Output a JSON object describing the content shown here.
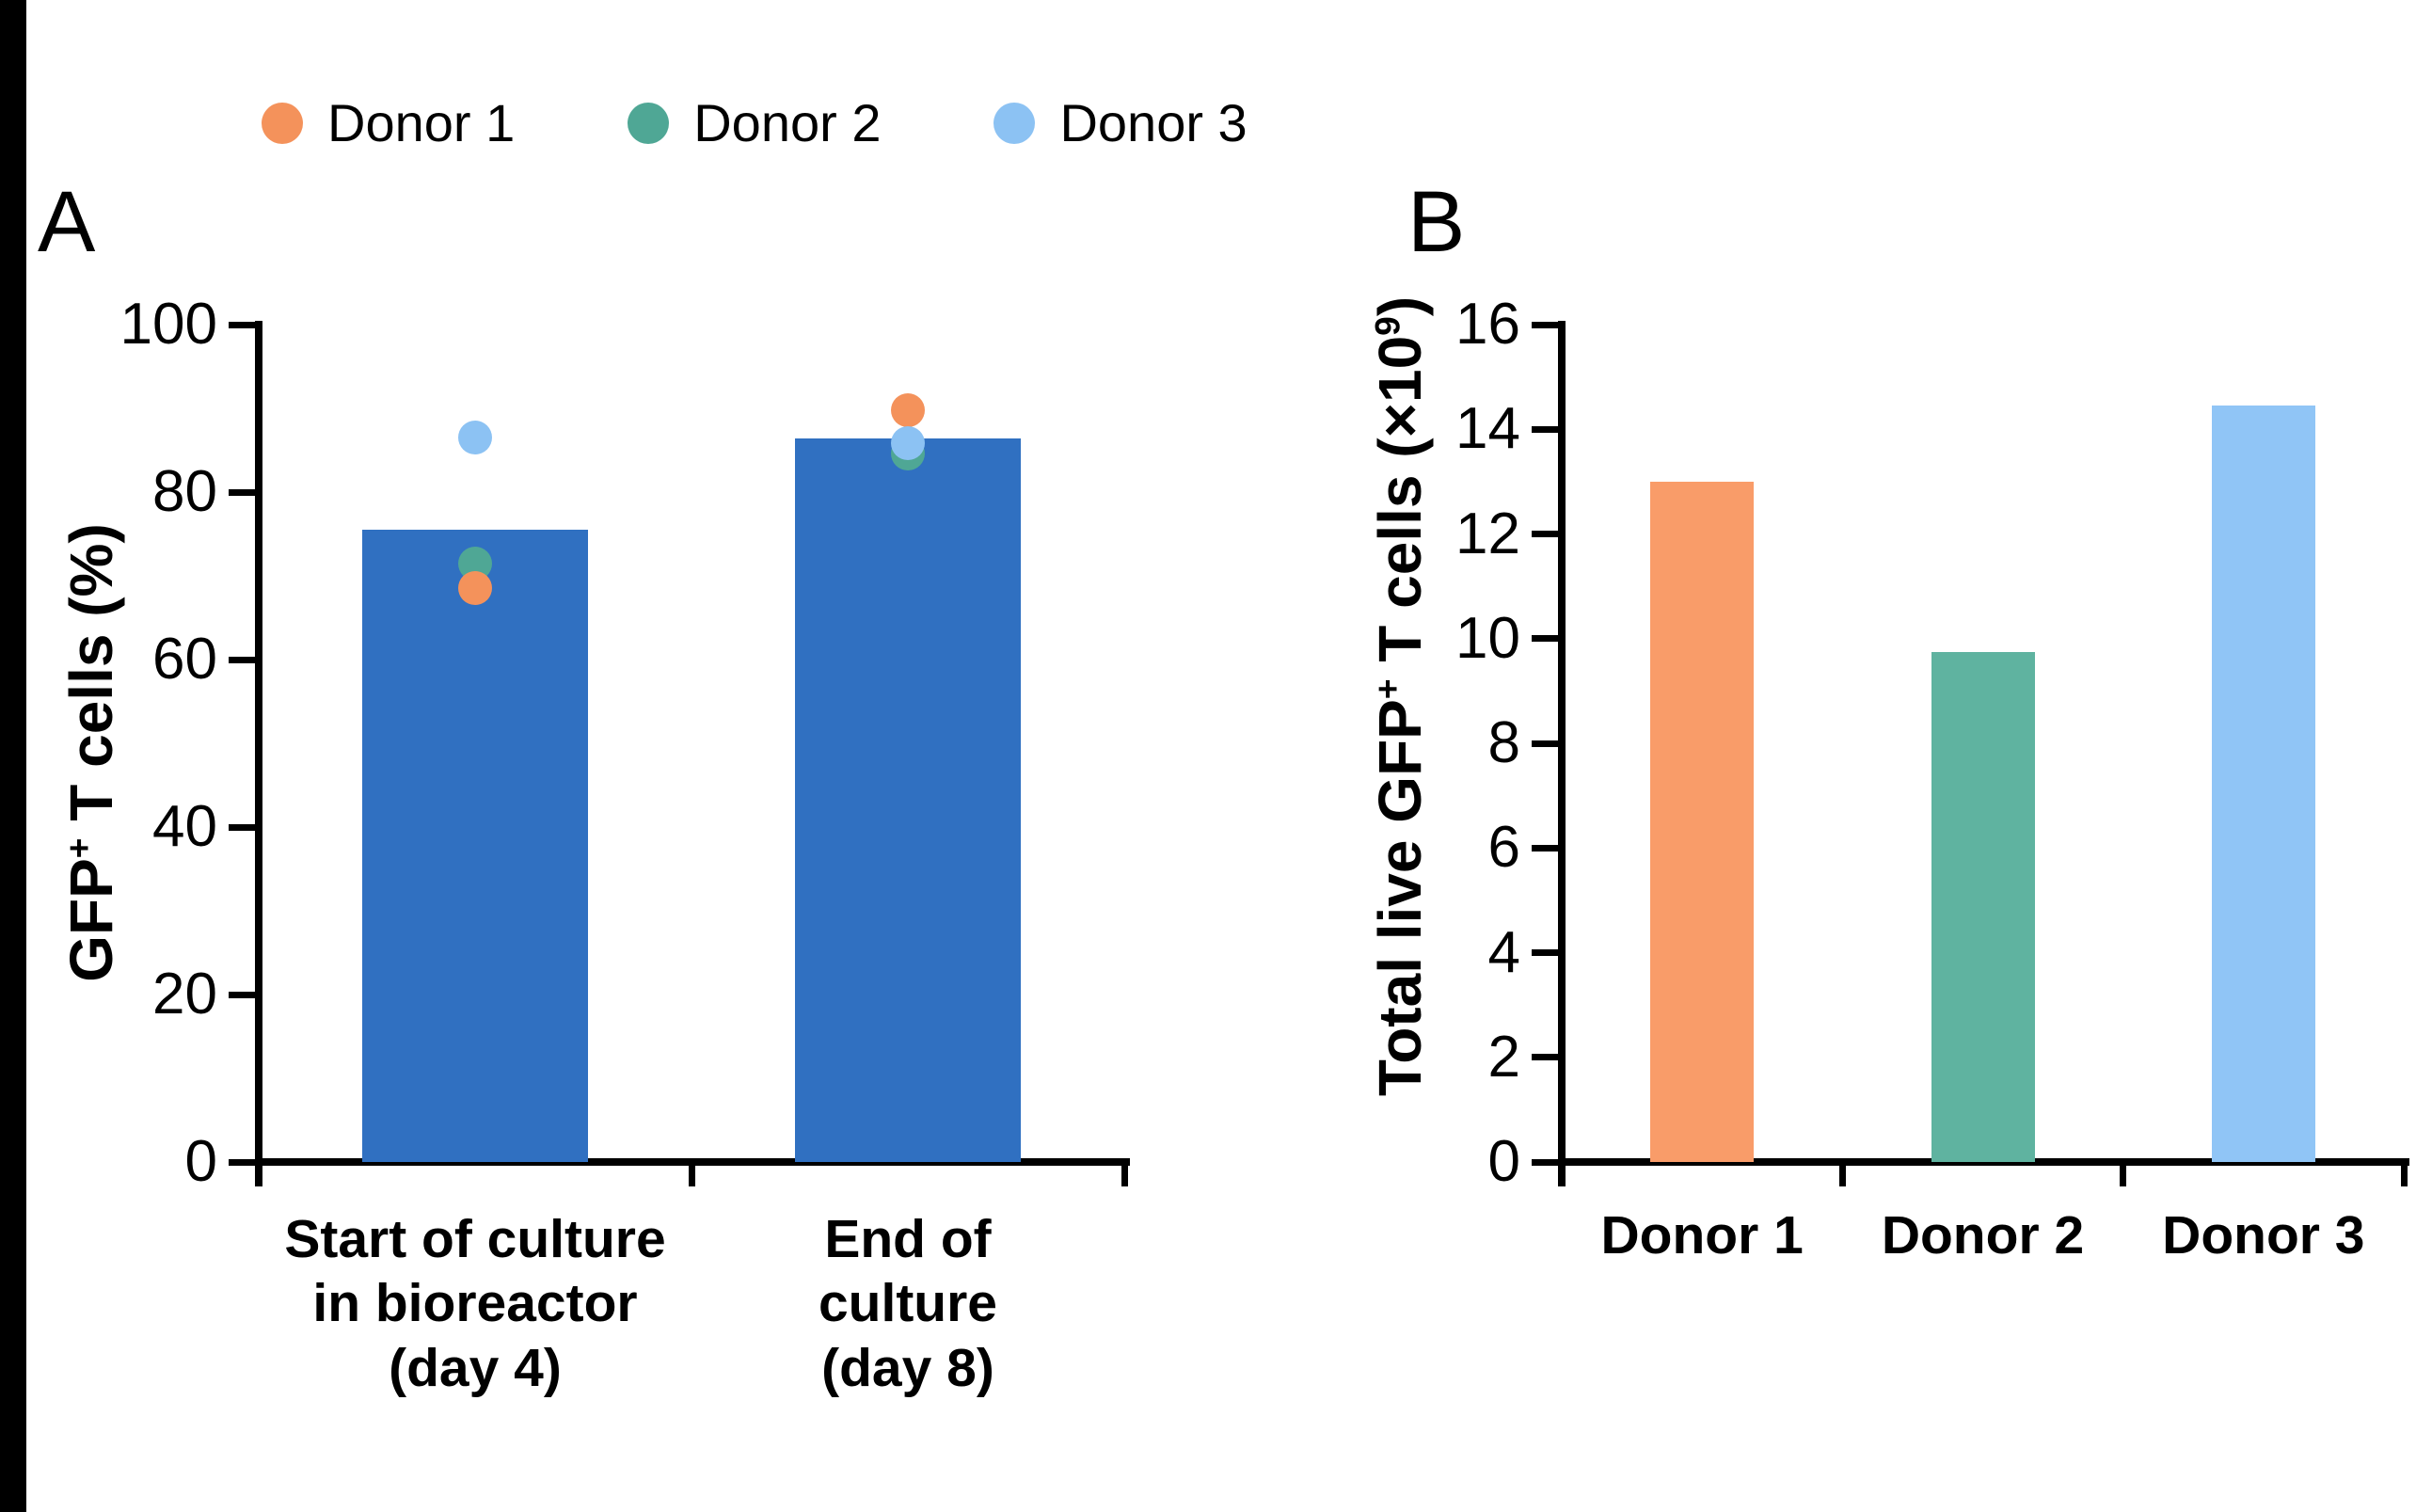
{
  "figure": {
    "background": "#ffffff",
    "left_strip_color": "#000000"
  },
  "panels": {
    "a_label": "A",
    "b_label": "B"
  },
  "legend": {
    "items": [
      {
        "label": "Donor 1",
        "color": "#F4925B"
      },
      {
        "label": "Donor 2",
        "color": "#4FA795"
      },
      {
        "label": "Donor 3",
        "color": "#8CC2F3"
      }
    ]
  },
  "chart_data": [
    {
      "id": "panel_a",
      "type": "bar",
      "panel_label": "A",
      "title": "",
      "ylabel": "GFP⁺ T cells (%)",
      "ylabel_rich": [
        {
          "t": "GFP"
        },
        {
          "t": "+",
          "sup": true
        },
        {
          "t": " T cells (%)"
        }
      ],
      "ylim": [
        0,
        100
      ],
      "yticks": [
        0,
        20,
        40,
        60,
        80,
        100
      ],
      "categories": [
        "Start of culture\nin bioreactor\n(day 4)",
        "End of\nculture\n(day 8)"
      ],
      "bar_color": "#3070C1",
      "bar_values": [
        75.5,
        86.4
      ],
      "points": {
        "draw_order": [
          "Donor 2",
          "Donor 1",
          "Donor 3"
        ],
        "series": [
          {
            "name": "Donor 1",
            "color": "#F4925B",
            "values": [
              68.5,
              89.8
            ]
          },
          {
            "name": "Donor 2",
            "color": "#4FA795",
            "values": [
              71.5,
              84.6
            ]
          },
          {
            "name": "Donor 3",
            "color": "#8CC2F3",
            "values": [
              86.5,
              85.8
            ]
          }
        ]
      },
      "grid": false,
      "legend_position": "top"
    },
    {
      "id": "panel_b",
      "type": "bar",
      "panel_label": "B",
      "title": "",
      "ylabel": "Total live GFP⁺ T cells (×10⁹)",
      "ylabel_rich": [
        {
          "t": "Total live GFP"
        },
        {
          "t": "+",
          "sup": true
        },
        {
          "t": " T cells (×10"
        },
        {
          "t": "9",
          "sup": true
        },
        {
          "t": ")"
        }
      ],
      "ylim": [
        0,
        16
      ],
      "yticks": [
        0,
        2,
        4,
        6,
        8,
        10,
        12,
        14,
        16
      ],
      "categories": [
        "Donor 1",
        "Donor 2",
        "Donor 3"
      ],
      "values": [
        13.0,
        9.75,
        14.45
      ],
      "bar_colors": [
        "#F99C69",
        "#5FB3A0",
        "#90C5F6"
      ],
      "grid": false
    }
  ]
}
